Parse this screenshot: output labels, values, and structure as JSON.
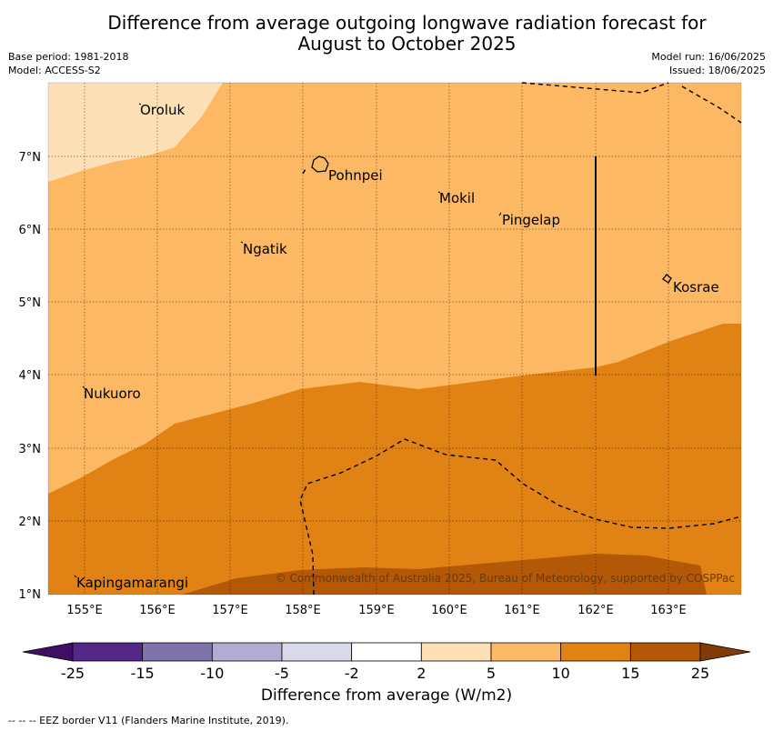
{
  "title_line1": "Difference from average outgoing longwave radiation forecast for",
  "title_line2": "August to October 2025",
  "meta_left": {
    "base_period": "Base period: 1981-2018",
    "model": "Model: ACCESS-S2"
  },
  "meta_right": {
    "model_run": "Model run: 16/06/2025",
    "issued": "Issued: 18/06/2025"
  },
  "lon_ticks": [
    "155°E",
    "156°E",
    "157°E",
    "158°E",
    "159°E",
    "160°E",
    "161°E",
    "162°E",
    "163°E"
  ],
  "lat_ticks": [
    "7°N",
    "6°N",
    "5°N",
    "4°N",
    "3°N",
    "2°N",
    "1°N"
  ],
  "places": [
    {
      "name": "Oroluk"
    },
    {
      "name": "Pohnpei"
    },
    {
      "name": "Mokil"
    },
    {
      "name": "Pingelap"
    },
    {
      "name": "Ngatik"
    },
    {
      "name": "Kosrae"
    },
    {
      "name": "Nukuoro"
    },
    {
      "name": "Kapingamarangi"
    }
  ],
  "copyright": "© Commonwealth of Australia 2025, Bureau of Meteorology, supported by COSPPac",
  "colorbar": {
    "ticks": [
      "-25",
      "-15",
      "-10",
      "-5",
      "-2",
      "2",
      "5",
      "10",
      "15",
      "25"
    ],
    "colors": [
      "#3f0f66",
      "#542788",
      "#8073ac",
      "#b2abd2",
      "#d8daeb",
      "#ffffff",
      "#fee0b6",
      "#fdb863",
      "#e08214",
      "#b35806",
      "#7f3b08"
    ],
    "label": "Difference from average (W/m2)"
  },
  "footer": "--  --  -- EEZ border V11 (Flanders Marine Institute, 2019)."
}
